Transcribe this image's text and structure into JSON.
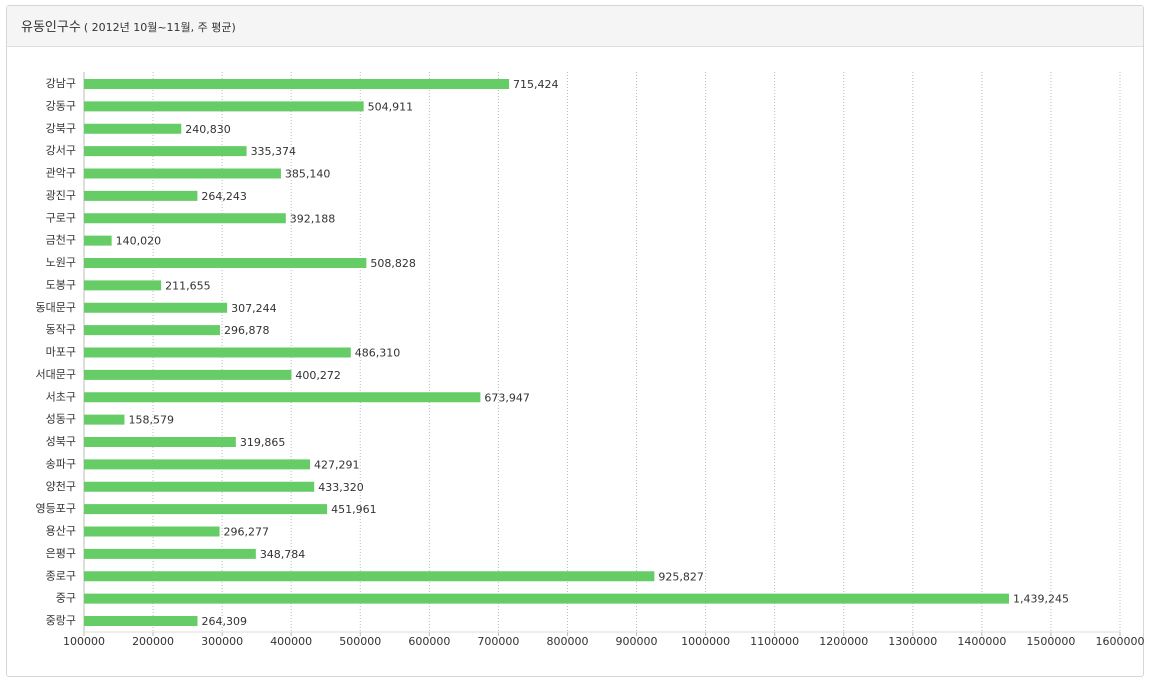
{
  "chart_data": {
    "type": "bar",
    "orientation": "horizontal",
    "title": "유동인구수",
    "subtitle": "( 2012년 10월~11월, 주 평균)",
    "categories": [
      "강남구",
      "강동구",
      "강북구",
      "강서구",
      "관악구",
      "광진구",
      "구로구",
      "금천구",
      "노원구",
      "도봉구",
      "동대문구",
      "동작구",
      "마포구",
      "서대문구",
      "서초구",
      "성동구",
      "성북구",
      "송파구",
      "양천구",
      "영등포구",
      "용산구",
      "은평구",
      "종로구",
      "중구",
      "중랑구"
    ],
    "values": [
      715424,
      504911,
      240830,
      335374,
      385140,
      264243,
      392188,
      140020,
      508828,
      211655,
      307244,
      296878,
      486310,
      400272,
      673947,
      158579,
      319865,
      427291,
      433320,
      451961,
      296277,
      348784,
      925827,
      1439245,
      264309
    ],
    "value_labels": [
      "715,424",
      "504,911",
      "240,830",
      "335,374",
      "385,140",
      "264,243",
      "392,188",
      "140,020",
      "508,828",
      "211,655",
      "307,244",
      "296,878",
      "486,310",
      "400,272",
      "673,947",
      "158,579",
      "319,865",
      "427,291",
      "433,320",
      "451,961",
      "296,277",
      "348,784",
      "925,827",
      "1,439,245",
      "264,309"
    ],
    "color": "#66cc66",
    "xlim": [
      100000,
      1600000
    ],
    "xticks": [
      100000,
      200000,
      300000,
      400000,
      500000,
      600000,
      700000,
      800000,
      900000,
      1000000,
      1100000,
      1200000,
      1300000,
      1400000,
      1500000,
      1600000
    ],
    "grid": true
  }
}
